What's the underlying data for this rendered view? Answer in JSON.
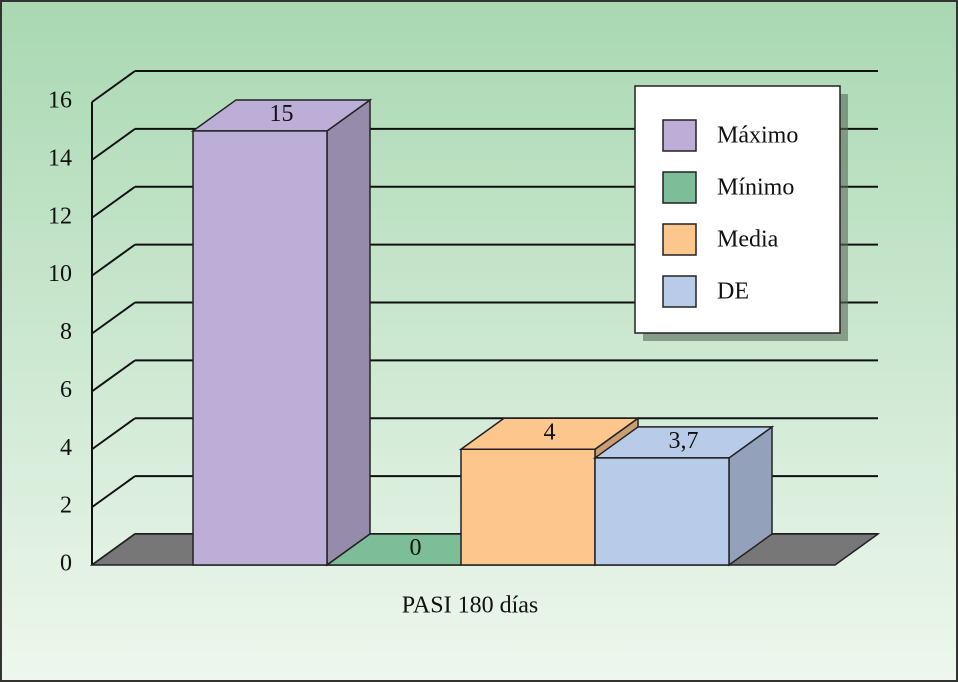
{
  "chart_data": {
    "type": "bar3d",
    "categories": [
      "PASI 180 días"
    ],
    "series": [
      {
        "name": "Máximo",
        "color": "#bcaed6",
        "values": [
          15
        ]
      },
      {
        "name": "Mínimo",
        "color": "#7dbd97",
        "values": [
          0
        ]
      },
      {
        "name": "Media",
        "color": "#fdc68c",
        "values": [
          4
        ]
      },
      {
        "name": "DE",
        "color": "#b8cbe8",
        "values": [
          3.7
        ],
        "value_labels": [
          "3,7"
        ]
      }
    ],
    "ylim": [
      0,
      16
    ],
    "yticks": [
      0,
      2,
      4,
      6,
      8,
      10,
      12,
      14,
      16
    ],
    "grid": true,
    "legend": "upper right"
  }
}
